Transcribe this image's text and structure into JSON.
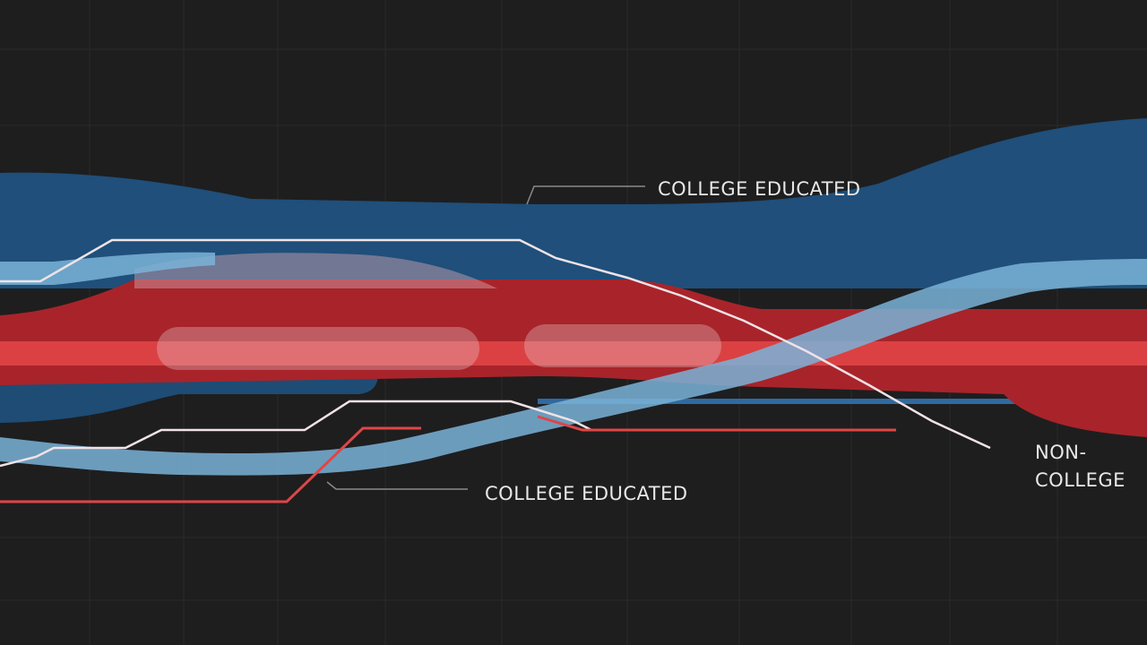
{
  "labels": {
    "top": "COLLEGE EDUCATED",
    "bottom": "COLLEGE EDUCATED",
    "right_line1": "NON-",
    "right_line2": "COLLEGE"
  },
  "colors": {
    "background": "#1e1e1f",
    "dark_blue": "#1f4f7a",
    "light_blue": "#7ab3d8",
    "red": "#a8242a",
    "bright_red": "#e04545",
    "white_line": "#f0e2e6",
    "grid": "#2a2a2b"
  }
}
